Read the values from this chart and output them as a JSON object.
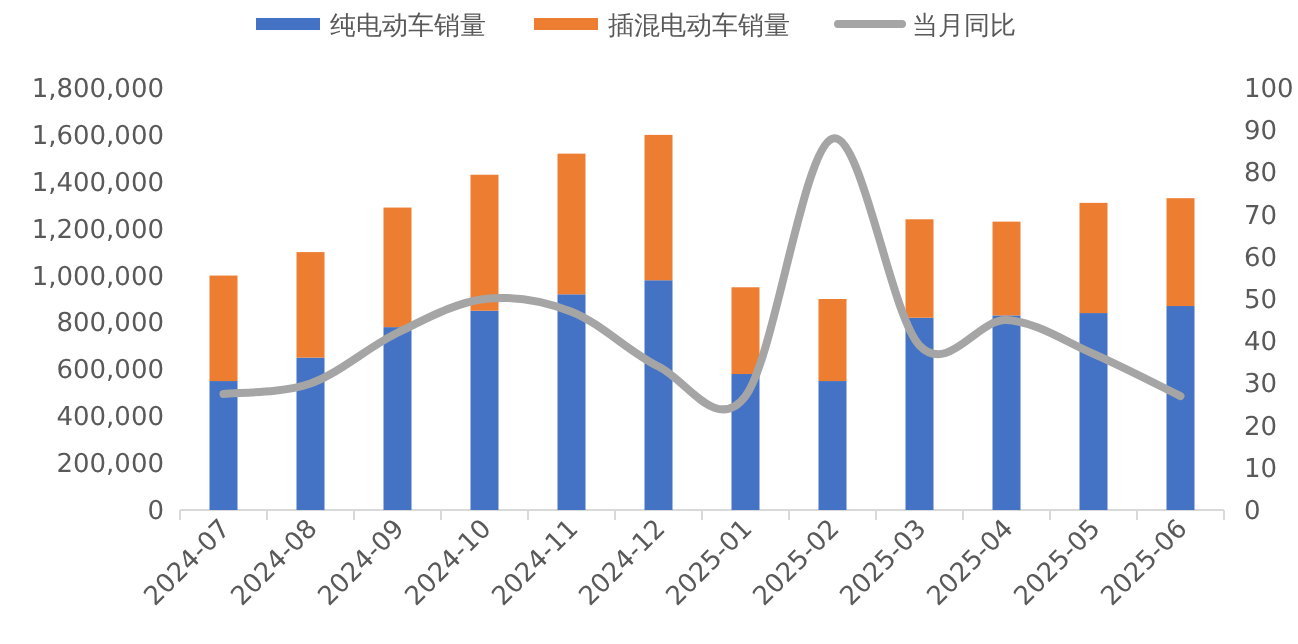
{
  "chart_data": {
    "type": "bar",
    "stacked": true,
    "legend": "top",
    "categories": [
      "2024-07",
      "2024-08",
      "2024-09",
      "2024-10",
      "2024-11",
      "2024-12",
      "2025-01",
      "2025-02",
      "2025-03",
      "2025-04",
      "2025-05",
      "2025-06"
    ],
    "series": [
      {
        "name": "纯电动车销量",
        "color": "#4472c4",
        "values": [
          550000,
          650000,
          780000,
          850000,
          920000,
          980000,
          580000,
          550000,
          820000,
          830000,
          840000,
          870000
        ]
      },
      {
        "name": "插混电动车销量",
        "color": "#ed7d31",
        "values": [
          450000,
          450000,
          510000,
          580000,
          600000,
          620000,
          370000,
          350000,
          420000,
          400000,
          470000,
          460000
        ]
      },
      {
        "name": "当月同比",
        "type": "line",
        "axis": "y2",
        "color": "#a5a5a5",
        "values": [
          27.5,
          30,
          42,
          50,
          47,
          34,
          27,
          88,
          39,
          45,
          37,
          27
        ]
      }
    ],
    "ylim": [
      0,
      1800000
    ],
    "yticks": [
      {
        "value": 0,
        "label": "0"
      },
      {
        "value": 200000,
        "label": "200,000"
      },
      {
        "value": 400000,
        "label": "400,000"
      },
      {
        "value": 600000,
        "label": "600,000"
      },
      {
        "value": 800000,
        "label": "800,000"
      },
      {
        "value": 1000000,
        "label": "1,000,000"
      },
      {
        "value": 1200000,
        "label": "1,200,000"
      },
      {
        "value": 1400000,
        "label": "1,400,000"
      },
      {
        "value": 1600000,
        "label": "1,600,000"
      },
      {
        "value": 1800000,
        "label": "1,800,000"
      }
    ],
    "y2lim": [
      0,
      100
    ],
    "y2ticks": [
      0,
      10,
      20,
      30,
      40,
      50,
      60,
      70,
      80,
      90,
      100
    ]
  }
}
